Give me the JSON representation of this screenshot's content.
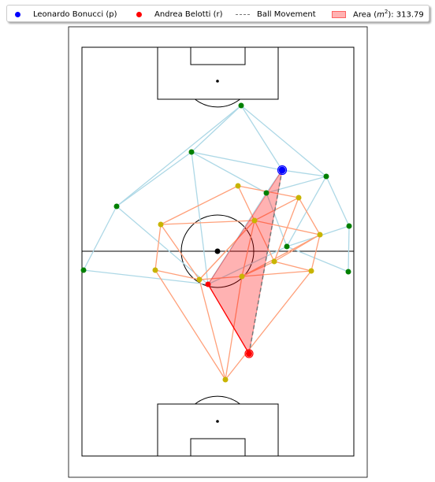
{
  "legend": {
    "passer_label": "Leonardo Bonucci (p)",
    "receiver_label": "Andrea Belotti (r)",
    "movement_label": "Ball Movement",
    "area_label_prefix": "Area (",
    "area_label_unit": "m",
    "area_label_exp": "2",
    "area_label_suffix": "): 313.79"
  },
  "colors": {
    "passer": "#0000ff",
    "receiver": "#ff0000",
    "team_a": "#008000",
    "team_b": "#c8b400",
    "team_a_edges": "#add8e6",
    "team_b_edges": "#ffa07a",
    "area_fill": "#ff0000",
    "movement": "#777777"
  },
  "passer": [
    358,
    216
  ],
  "receiver": [
    316,
    449
  ],
  "area_polygon": [
    [
      358,
      216
    ],
    [
      264,
      361
    ],
    [
      316,
      449
    ]
  ],
  "team_a_players": [
    [
      306,
      134
    ],
    [
      243,
      193
    ],
    [
      148,
      262
    ],
    [
      106,
      343
    ],
    [
      414,
      224
    ],
    [
      443,
      287
    ],
    [
      442,
      345
    ],
    [
      364,
      313
    ],
    [
      338,
      245
    ]
  ],
  "team_a_edges": [
    [
      [
        306,
        134
      ],
      [
        243,
        193
      ]
    ],
    [
      [
        306,
        134
      ],
      [
        148,
        262
      ]
    ],
    [
      [
        306,
        134
      ],
      [
        358,
        216
      ]
    ],
    [
      [
        306,
        134
      ],
      [
        414,
        224
      ]
    ],
    [
      [
        148,
        262
      ],
      [
        243,
        193
      ]
    ],
    [
      [
        148,
        262
      ],
      [
        106,
        343
      ]
    ],
    [
      [
        148,
        262
      ],
      [
        264,
        361
      ]
    ],
    [
      [
        243,
        193
      ],
      [
        358,
        216
      ]
    ],
    [
      [
        243,
        193
      ],
      [
        338,
        245
      ]
    ],
    [
      [
        243,
        193
      ],
      [
        264,
        361
      ]
    ],
    [
      [
        106,
        343
      ],
      [
        264,
        361
      ]
    ],
    [
      [
        358,
        216
      ],
      [
        414,
        224
      ]
    ],
    [
      [
        414,
        224
      ],
      [
        338,
        245
      ]
    ],
    [
      [
        414,
        224
      ],
      [
        443,
        287
      ]
    ],
    [
      [
        414,
        224
      ],
      [
        364,
        313
      ]
    ],
    [
      [
        443,
        287
      ],
      [
        442,
        345
      ]
    ],
    [
      [
        443,
        287
      ],
      [
        364,
        313
      ]
    ],
    [
      [
        442,
        345
      ],
      [
        364,
        313
      ]
    ],
    [
      [
        364,
        313
      ],
      [
        338,
        245
      ]
    ],
    [
      [
        338,
        245
      ],
      [
        264,
        361
      ]
    ],
    [
      [
        364,
        313
      ],
      [
        264,
        361
      ]
    ],
    [
      [
        358,
        216
      ],
      [
        338,
        245
      ]
    ]
  ],
  "team_b_players": [
    [
      302,
      236
    ],
    [
      379,
      251
    ],
    [
      323,
      280
    ],
    [
      204,
      285
    ],
    [
      406,
      298
    ],
    [
      348,
      332
    ],
    [
      197,
      343
    ],
    [
      253,
      355
    ],
    [
      307,
      351
    ],
    [
      395,
      344
    ],
    [
      286,
      482
    ]
  ],
  "team_b_edges": [
    [
      [
        302,
        236
      ],
      [
        379,
        251
      ]
    ],
    [
      [
        302,
        236
      ],
      [
        323,
        280
      ]
    ],
    [
      [
        302,
        236
      ],
      [
        204,
        285
      ]
    ],
    [
      [
        379,
        251
      ],
      [
        323,
        280
      ]
    ],
    [
      [
        379,
        251
      ],
      [
        406,
        298
      ]
    ],
    [
      [
        379,
        251
      ],
      [
        348,
        332
      ]
    ],
    [
      [
        204,
        285
      ],
      [
        323,
        280
      ]
    ],
    [
      [
        204,
        285
      ],
      [
        197,
        343
      ]
    ],
    [
      [
        204,
        285
      ],
      [
        253,
        355
      ]
    ],
    [
      [
        323,
        280
      ],
      [
        406,
        298
      ]
    ],
    [
      [
        323,
        280
      ],
      [
        348,
        332
      ]
    ],
    [
      [
        323,
        280
      ],
      [
        307,
        351
      ]
    ],
    [
      [
        323,
        280
      ],
      [
        253,
        355
      ]
    ],
    [
      [
        406,
        298
      ],
      [
        395,
        344
      ]
    ],
    [
      [
        406,
        298
      ],
      [
        348,
        332
      ]
    ],
    [
      [
        406,
        298
      ],
      [
        307,
        351
      ]
    ],
    [
      [
        348,
        332
      ],
      [
        307,
        351
      ]
    ],
    [
      [
        395,
        344
      ],
      [
        348,
        332
      ]
    ],
    [
      [
        395,
        344
      ],
      [
        307,
        351
      ]
    ],
    [
      [
        197,
        343
      ],
      [
        253,
        355
      ]
    ],
    [
      [
        197,
        343
      ],
      [
        286,
        482
      ]
    ],
    [
      [
        253,
        355
      ],
      [
        307,
        351
      ]
    ],
    [
      [
        253,
        355
      ],
      [
        286,
        482
      ]
    ],
    [
      [
        307,
        351
      ],
      [
        286,
        482
      ]
    ],
    [
      [
        395,
        344
      ],
      [
        286,
        482
      ]
    ],
    [
      [
        253,
        355
      ],
      [
        323,
        280
      ]
    ]
  ]
}
